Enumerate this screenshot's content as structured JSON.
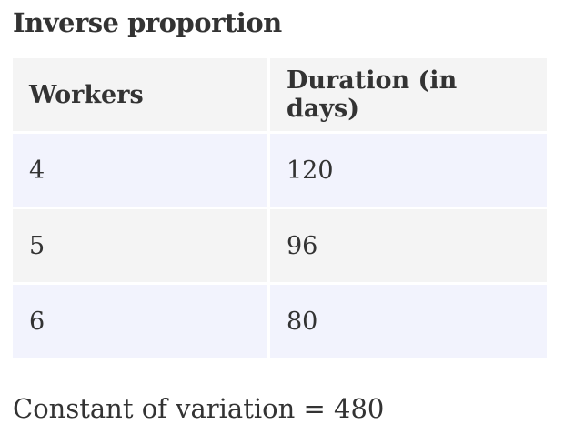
{
  "title": "Inverse proportion",
  "table": {
    "header": [
      "Workers",
      "Duration (in days)"
    ],
    "rows": [
      [
        "4",
        "120"
      ],
      [
        "5",
        "96"
      ],
      [
        "6",
        "80"
      ]
    ]
  },
  "footer": "Constant of variation = 480"
}
